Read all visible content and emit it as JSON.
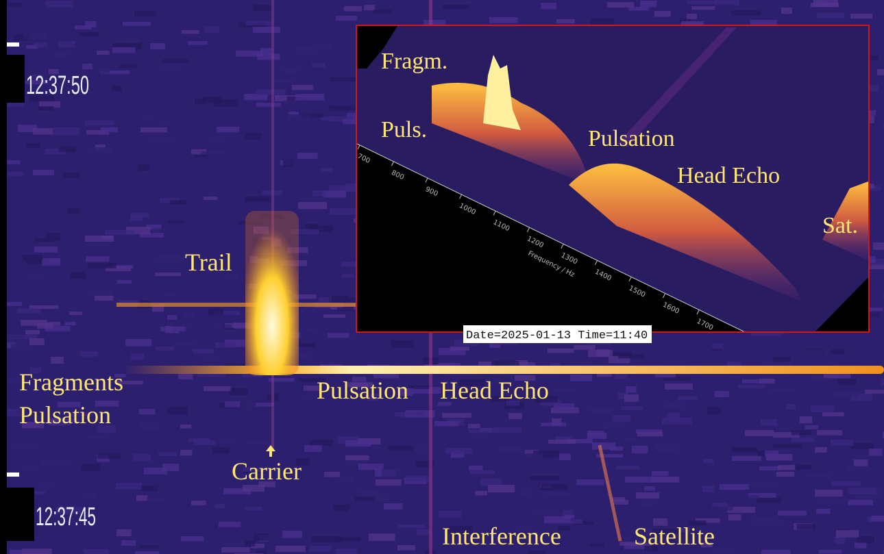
{
  "timestamps": {
    "upper": "12:37:50",
    "lower": "12:37:45"
  },
  "labels": {
    "trail": "Trail",
    "fragments": "Fragments",
    "pulsation_left": "Pulsation",
    "pulsation": "Pulsation",
    "head_echo": "Head Echo",
    "carrier": "Carrier",
    "interference": "Interference",
    "satellite": "Satellite"
  },
  "inset": {
    "labels": {
      "fragm": "Fragm.",
      "puls": "Puls.",
      "pulsation": "Pulsation",
      "head_echo": "Head Echo",
      "sat": "Sat."
    },
    "frequency_ticks": [
      "700",
      "800",
      "900",
      "1000",
      "1100",
      "1200",
      "1300",
      "1400",
      "1500",
      "1600",
      "1700"
    ],
    "axis_label": "Frequency / Hz",
    "date_stamp": "Date=2025-01-13 Time=11:40"
  }
}
